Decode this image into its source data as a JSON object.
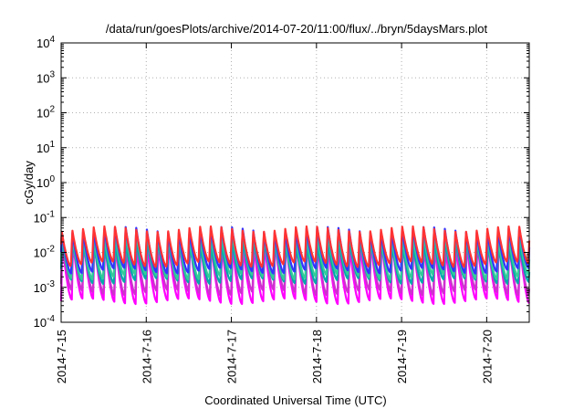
{
  "chart_data": {
    "type": "line",
    "title": "/data/run/goesPlots/archive/2014-07-20/11:00/flux/../bryn/5daysMars.plot",
    "xlabel": "Coordinated Universal Time (UTC)",
    "ylabel": "cGy/day",
    "y_scale": "log",
    "ylim": [
      0.0001,
      10000
    ],
    "xlim": [
      "2014-07-15 00:00",
      "2014-07-20 12:00"
    ],
    "x_ticks": [
      "2014-7-15",
      "2014-7-16",
      "2014-7-17",
      "2014-7-18",
      "2014-7-19",
      "2014-7-20"
    ],
    "y_ticks": [
      {
        "base": "10",
        "exp": "-4"
      },
      {
        "base": "10",
        "exp": "-3"
      },
      {
        "base": "10",
        "exp": "-2"
      },
      {
        "base": "10",
        "exp": "-1"
      },
      {
        "base": "10",
        "exp": "0"
      },
      {
        "base": "10",
        "exp": "1"
      },
      {
        "base": "10",
        "exp": "2"
      },
      {
        "base": "10",
        "exp": "3"
      },
      {
        "base": "10",
        "exp": "4"
      }
    ],
    "grid": true,
    "legend": "none",
    "series": [
      {
        "color": "#ff00ff",
        "peak": 0.018,
        "trough": 0.0004
      },
      {
        "color": "#cc33cc",
        "peak": 0.022,
        "trough": 0.0007
      },
      {
        "color": "#00aaaa",
        "peak": 0.02,
        "trough": 0.0015
      },
      {
        "color": "#33cc99",
        "peak": 0.03,
        "trough": 0.002
      },
      {
        "color": "#3333ff",
        "peak": 0.045,
        "trough": 0.003
      },
      {
        "color": "#ff3333",
        "peak": 0.05,
        "trough": 0.0045
      }
    ],
    "cycles_per_day": 8
  }
}
